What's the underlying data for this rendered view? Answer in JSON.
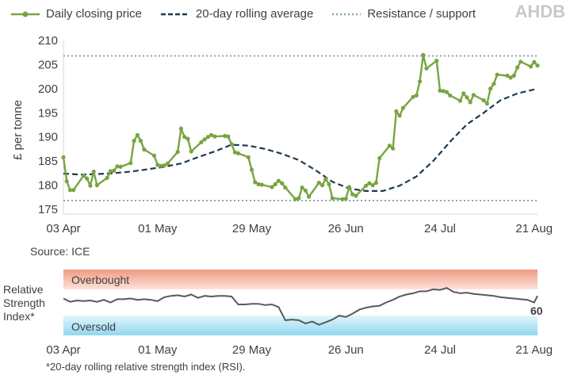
{
  "legend": {
    "price": "Daily closing price",
    "average": "20-day rolling average",
    "levels": "Resistance / support"
  },
  "logo": "AHDB",
  "source": "Source: ICE",
  "rsi_label_lines": [
    "Relative",
    "Strength",
    "Index*"
  ],
  "rsi_bands": {
    "upper": "Overbought",
    "lower": "Oversold"
  },
  "rsi_last_value": "60",
  "footnote": "*20-day rolling relative strength index (RSI).",
  "colors": {
    "price": "#77a541",
    "average": "#1f3a4d",
    "levels": "#8aa6b5",
    "overbought": "#f3a894",
    "oversold": "#9fdcef",
    "rsi": "#595959"
  },
  "chart_data": [
    {
      "type": "line",
      "ylabel": "£ per tonne",
      "ylim": [
        175,
        210
      ],
      "yticks": [
        175,
        180,
        185,
        190,
        195,
        200,
        205,
        210
      ],
      "x_ticks": [
        "03 Apr",
        "01 May",
        "29 May",
        "26 Jun",
        "24 Jul",
        "21 Aug"
      ],
      "x_tick_days": [
        0,
        28,
        56,
        84,
        112,
        140
      ],
      "x_unit": "days from 03 Apr",
      "grid": false,
      "legend_position": "top",
      "levels": [
        206.8,
        176.8
      ],
      "series": [
        {
          "name": "Daily closing price",
          "x": [
            0,
            1,
            2,
            3,
            6,
            7,
            8,
            9,
            10,
            13,
            14,
            15,
            16,
            17,
            20,
            21,
            22,
            23,
            24,
            27,
            28,
            29,
            30,
            31,
            34,
            35,
            36,
            37,
            38,
            41,
            42,
            43,
            44,
            45,
            48,
            49,
            50,
            51,
            52,
            55,
            56,
            57,
            58,
            59,
            62,
            63,
            64,
            65,
            66,
            69,
            70,
            71,
            72,
            73,
            76,
            77,
            78,
            79,
            80,
            83,
            84,
            85,
            86,
            87,
            90,
            91,
            92,
            93,
            94,
            97,
            98,
            99,
            100,
            101,
            104,
            105,
            106,
            107,
            108,
            111,
            112,
            113,
            114,
            115,
            118,
            119,
            120,
            121,
            122,
            125,
            126,
            127,
            128,
            129,
            132,
            133,
            134,
            135,
            136,
            139,
            140,
            141
          ],
          "values": [
            185.8,
            180.8,
            179.0,
            179.0,
            182.0,
            181.4,
            179.9,
            182.8,
            180.0,
            181.5,
            182.9,
            183.0,
            183.9,
            183.8,
            184.6,
            189.2,
            190.4,
            189.2,
            187.4,
            186.1,
            184.2,
            184.0,
            184.1,
            184.5,
            186.9,
            191.7,
            190.0,
            189.6,
            187.0,
            188.9,
            189.5,
            190.0,
            190.4,
            190.1,
            190.2,
            190.1,
            188.5,
            186.8,
            186.6,
            185.8,
            183.2,
            180.6,
            180.2,
            180.1,
            179.6,
            180.2,
            180.9,
            180.4,
            179.5,
            177.1,
            177.3,
            179.5,
            178.9,
            177.6,
            180.5,
            180.0,
            181.3,
            180.2,
            177.3,
            177.1,
            177.2,
            179.6,
            178.1,
            177.8,
            179.9,
            180.4,
            180.0,
            180.5,
            185.6,
            188.2,
            187.6,
            195.3,
            194.4,
            196.0,
            198.3,
            198.6,
            201.5,
            207.0,
            204.2,
            205.8,
            199.6,
            199.5,
            199.3,
            198.6,
            197.5,
            199.0,
            198.2,
            197.2,
            198.7,
            197.6,
            196.9,
            200.0,
            201.0,
            202.9,
            202.7,
            202.3,
            202.7,
            204.4,
            205.6,
            204.6,
            205.5,
            204.8
          ]
        },
        {
          "name": "20-day rolling average",
          "x": [
            0,
            5,
            10,
            15,
            20,
            25,
            30,
            35,
            40,
            45,
            50,
            55,
            60,
            65,
            70,
            75,
            80,
            85,
            90,
            95,
            100,
            105,
            110,
            115,
            120,
            125,
            130,
            135,
            141
          ],
          "values": [
            182.4,
            182.2,
            182.3,
            182.5,
            182.8,
            183.3,
            183.8,
            184.5,
            185.8,
            187.0,
            188.4,
            188.2,
            187.5,
            186.5,
            185.2,
            183.1,
            180.7,
            179.3,
            178.8,
            178.8,
            179.9,
            181.8,
            185.0,
            189.0,
            192.6,
            195.0,
            197.6,
            199.0,
            200.0
          ]
        }
      ]
    },
    {
      "type": "line",
      "ylabel": "Relative Strength Index*",
      "ylim": [
        0,
        100
      ],
      "bands": {
        "overbought": [
          70,
          100
        ],
        "oversold": [
          0,
          30
        ]
      },
      "x_ticks": [
        "03 Apr",
        "01 May",
        "29 May",
        "26 Jun",
        "24 Jul",
        "21 Aug"
      ],
      "x_tick_days": [
        0,
        28,
        56,
        84,
        112,
        140
      ],
      "x_unit": "days from 03 Apr",
      "series": [
        {
          "name": "RSI",
          "x": [
            0,
            2,
            4,
            6,
            8,
            10,
            12,
            14,
            16,
            18,
            20,
            22,
            24,
            26,
            28,
            30,
            32,
            34,
            36,
            38,
            40,
            42,
            44,
            46,
            48,
            50,
            52,
            54,
            56,
            58,
            60,
            62,
            64,
            66,
            68,
            70,
            72,
            74,
            76,
            78,
            80,
            82,
            84,
            86,
            88,
            90,
            92,
            94,
            96,
            98,
            100,
            102,
            104,
            106,
            108,
            110,
            112,
            114,
            116,
            118,
            120,
            122,
            124,
            126,
            128,
            130,
            132,
            134,
            136,
            138,
            140,
            141
          ],
          "values": [
            56,
            51,
            53,
            52,
            53,
            51,
            54,
            50,
            55,
            55,
            56,
            54,
            55,
            54,
            52,
            58,
            60,
            61,
            59,
            62,
            57,
            60,
            59,
            60,
            60,
            59,
            47,
            47,
            48,
            48,
            46,
            47,
            43,
            23,
            24,
            23,
            18,
            21,
            16,
            20,
            24,
            30,
            28,
            33,
            39,
            42,
            44,
            45,
            50,
            54,
            59,
            62,
            64,
            67,
            67,
            70,
            69,
            72,
            66,
            64,
            65,
            63,
            62,
            61,
            60,
            58,
            57,
            56,
            55,
            54,
            50,
            60
          ]
        }
      ]
    }
  ]
}
